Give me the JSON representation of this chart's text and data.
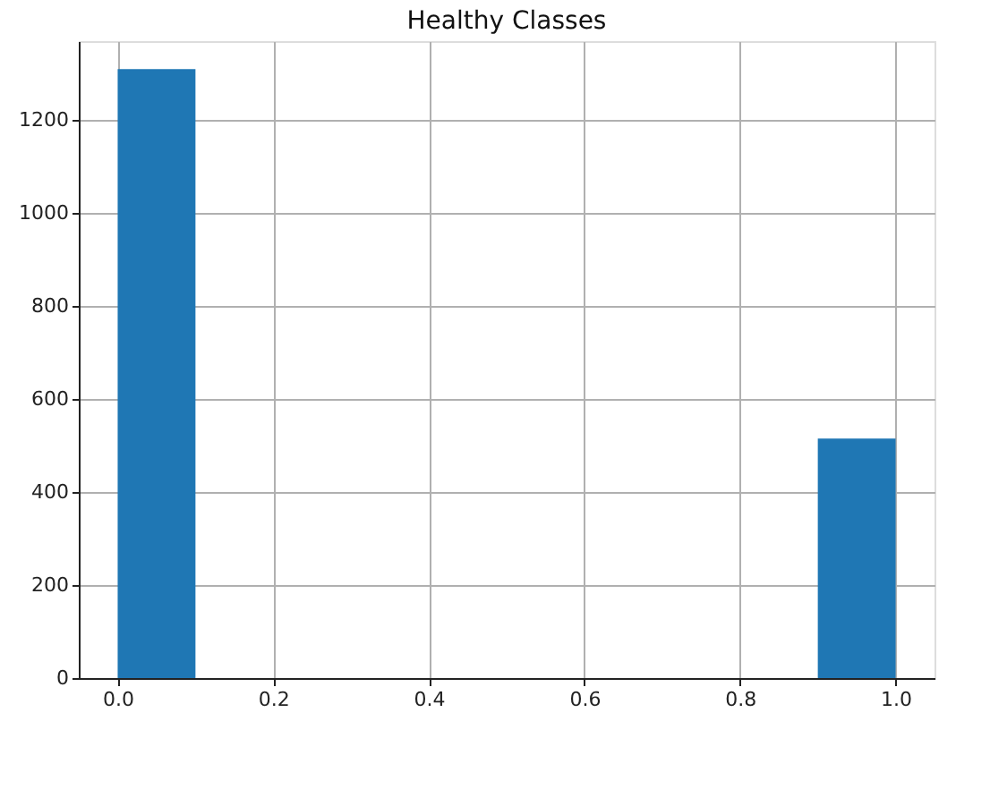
{
  "chart_data": {
    "type": "histogram",
    "title": "Healthy Classes",
    "bins": [
      0.0,
      0.1,
      0.2,
      0.3,
      0.4,
      0.5,
      0.6,
      0.7,
      0.8,
      0.9,
      1.0
    ],
    "values": [
      1310,
      0,
      0,
      0,
      0,
      0,
      0,
      0,
      0,
      515
    ],
    "color": "#1f77b4",
    "xlim": [
      -0.05,
      1.05
    ],
    "xticks": [
      {
        "value": 0,
        "label": "0.0"
      },
      0.2,
      0.4,
      0.6,
      0.8,
      {
        "value": 1,
        "label": "1.0"
      }
    ],
    "ylim": [
      0,
      1370
    ],
    "yticks": [
      0,
      200,
      400,
      600,
      800,
      1000,
      1200
    ],
    "grid": true
  }
}
